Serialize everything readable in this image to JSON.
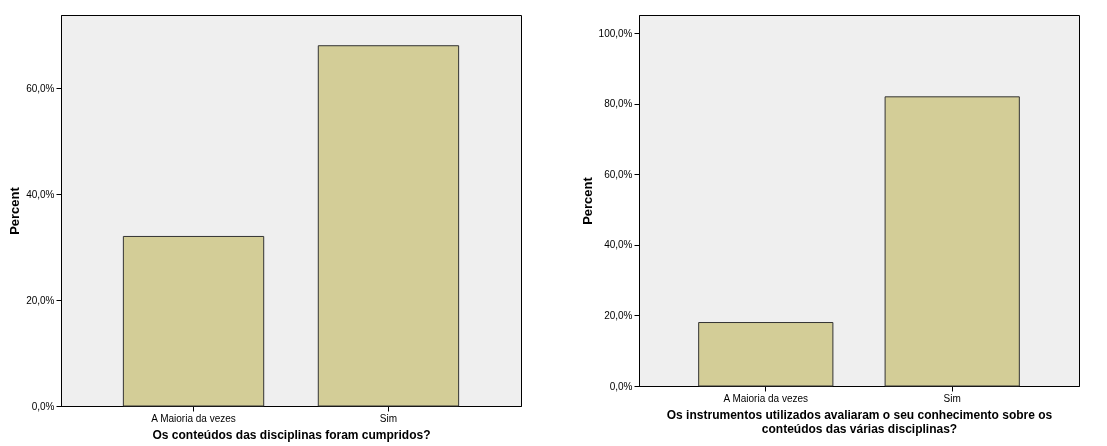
{
  "chart_data": [
    {
      "type": "bar",
      "xlabel": "Os conteúdos das disciplinas foram cumpridos?",
      "ylabel": "Percent",
      "categories": [
        "A Maioria da vezes",
        "Sim"
      ],
      "values": [
        32,
        68
      ],
      "color": "#d3cd97",
      "ylim": [
        0,
        73.8
      ],
      "yticks": [
        {
          "value": 0,
          "label": "0,0%"
        },
        {
          "value": 20,
          "label": "20,0%"
        },
        {
          "value": 40,
          "label": "40,0%"
        },
        {
          "value": 60,
          "label": "60,0%"
        }
      ],
      "grid": false,
      "legend": false
    },
    {
      "type": "bar",
      "xlabel": "Os instrumentos utilizados avaliaram o seu conhecimento sobre os conteúdos das várias disciplinas?",
      "ylabel": "Percent",
      "categories": [
        "A Maioria da vezes",
        "Sim"
      ],
      "values": [
        18,
        82
      ],
      "color": "#d3cd97",
      "ylim": [
        0,
        105.2
      ],
      "yticks": [
        {
          "value": 0,
          "label": "0,0%"
        },
        {
          "value": 20,
          "label": "20,0%"
        },
        {
          "value": 40,
          "label": "40,0%"
        },
        {
          "value": 60,
          "label": "60,0%"
        },
        {
          "value": 80,
          "label": "80,0%"
        },
        {
          "value": 100,
          "label": "100,0%"
        }
      ],
      "grid": false,
      "legend": false
    }
  ]
}
